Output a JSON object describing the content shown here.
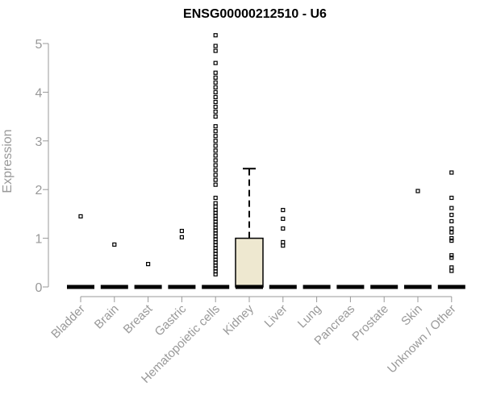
{
  "chart_data": {
    "type": "box",
    "title": "ENSG00000212510 - U6",
    "xlabel": "",
    "ylabel": "Expression",
    "ylim": [
      0,
      5
    ],
    "yticks": [
      "0",
      "1",
      "2",
      "3",
      "4",
      "5"
    ],
    "grid": false,
    "categories": [
      "Bladder",
      "Brain",
      "Breast",
      "Gastric",
      "Hematopoietic cells",
      "Kidney",
      "Liver",
      "Lung",
      "Pancreas",
      "Prostate",
      "Skin",
      "Unknown / Other"
    ],
    "boxes": [
      {
        "q1": 0,
        "median": 0,
        "q3": 0,
        "whisker_low": 0,
        "whisker_high": 0,
        "outliers": [
          1.45
        ]
      },
      {
        "q1": 0,
        "median": 0,
        "q3": 0,
        "whisker_low": 0,
        "whisker_high": 0,
        "outliers": [
          0.87
        ]
      },
      {
        "q1": 0,
        "median": 0,
        "q3": 0,
        "whisker_low": 0,
        "whisker_high": 0,
        "outliers": [
          0.47
        ]
      },
      {
        "q1": 0,
        "median": 0,
        "q3": 0,
        "whisker_low": 0,
        "whisker_high": 0,
        "outliers": [
          1.02,
          1.15
        ]
      },
      {
        "q1": 0,
        "median": 0,
        "q3": 0,
        "whisker_low": 0,
        "whisker_high": 0,
        "outliers": [
          0.26,
          0.32,
          0.38,
          0.44,
          0.5,
          0.56,
          0.62,
          0.68,
          0.74,
          0.8,
          0.86,
          0.92,
          0.98,
          1.04,
          1.1,
          1.16,
          1.22,
          1.28,
          1.34,
          1.4,
          1.46,
          1.52,
          1.58,
          1.65,
          1.72,
          1.83,
          2.1,
          2.2,
          2.3,
          2.4,
          2.5,
          2.6,
          2.7,
          2.8,
          2.9,
          3.0,
          3.1,
          3.2,
          3.3,
          3.5,
          3.6,
          3.7,
          3.8,
          3.9,
          4.0,
          4.1,
          4.2,
          4.3,
          4.4,
          4.6,
          4.85,
          4.95,
          5.17
        ]
      },
      {
        "q1": 0,
        "median": 0,
        "q3": 1.0,
        "whisker_low": 0,
        "whisker_high": 2.43,
        "outliers": []
      },
      {
        "q1": 0,
        "median": 0,
        "q3": 0,
        "whisker_low": 0,
        "whisker_high": 0,
        "outliers": [
          0.85,
          0.92,
          1.2,
          1.4,
          1.58
        ]
      },
      {
        "q1": 0,
        "median": 0,
        "q3": 0,
        "whisker_low": 0,
        "whisker_high": 0,
        "outliers": []
      },
      {
        "q1": 0,
        "median": 0,
        "q3": 0,
        "whisker_low": 0,
        "whisker_high": 0,
        "outliers": []
      },
      {
        "q1": 0,
        "median": 0,
        "q3": 0,
        "whisker_low": 0,
        "whisker_high": 0,
        "outliers": []
      },
      {
        "q1": 0,
        "median": 0,
        "q3": 0,
        "whisker_low": 0,
        "whisker_high": 0,
        "outliers": [
          1.97
        ]
      },
      {
        "q1": 0,
        "median": 0,
        "q3": 0,
        "whisker_low": 0,
        "whisker_high": 0,
        "outliers": [
          0.33,
          0.4,
          0.6,
          0.65,
          0.95,
          1.0,
          1.12,
          1.2,
          1.35,
          1.48,
          1.62,
          1.83,
          2.35
        ]
      }
    ],
    "colors": {
      "box_fill": "#EEE8D0",
      "box_stroke": "#000000",
      "axis": "#999999",
      "text": "#999999",
      "title": "#000000"
    }
  }
}
